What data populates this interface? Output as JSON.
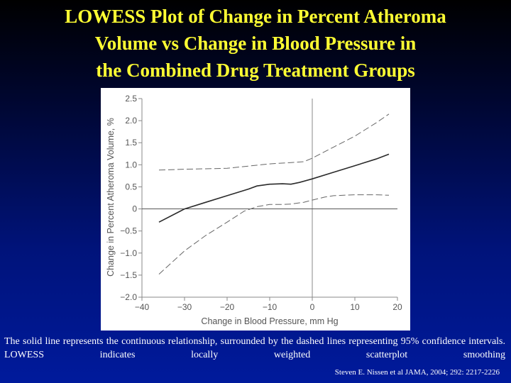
{
  "slide": {
    "title_lines": [
      "LOWESS Plot of Change in Percent Atheroma",
      "Volume vs Change in Blood Pressure in",
      "the Combined Drug Treatment Groups"
    ],
    "caption": "The solid line represents the continuous relationship, surrounded by the dashed lines representing 95% confidence intervals. LOWESS indicates locally weighted scatterplot smoothing",
    "citation": "Steven E. Nissen et al JAMA, 2004; 292: 2217-2226",
    "colors": {
      "title": "#ffff33",
      "background": "#00137a",
      "text": "#ffffff"
    }
  },
  "chart_data": {
    "type": "line",
    "title": "",
    "xlabel": "Change in Blood Pressure, mm Hg",
    "ylabel": "Change in Percent Atheroma Volume, %",
    "xlim": [
      -40,
      20
    ],
    "ylim": [
      -2.0,
      2.5
    ],
    "xticks": [
      -40,
      -30,
      -20,
      -10,
      0,
      10,
      20
    ],
    "xtick_labels": [
      "−40",
      "−30",
      "−20",
      "−10",
      "0",
      "10",
      "20"
    ],
    "yticks": [
      2.5,
      2.0,
      1.5,
      1.0,
      0.5,
      0,
      -0.5,
      -1.0,
      -1.5,
      -2.0
    ],
    "ytick_labels": [
      "2.5",
      "2.0",
      "1.5",
      "1.0",
      "0.5",
      "0",
      "−0.5",
      "−1.0",
      "−1.5",
      "−2.0"
    ],
    "grid": false,
    "reference_lines": {
      "x": 0,
      "y": 0
    },
    "series": [
      {
        "style": "solid",
        "x": [
          -36,
          -30,
          -25,
          -20,
          -15,
          -13,
          -10,
          -7,
          -5,
          -3,
          0,
          5,
          10,
          15,
          18
        ],
        "y": [
          -0.3,
          0.0,
          0.15,
          0.3,
          0.45,
          0.52,
          0.56,
          0.57,
          0.56,
          0.6,
          0.68,
          0.83,
          0.98,
          1.13,
          1.24
        ]
      },
      {
        "style": "dashed",
        "x": [
          -36,
          -30,
          -20,
          -15,
          -12,
          -10,
          -5,
          -2,
          0,
          5,
          10,
          15,
          18
        ],
        "y": [
          0.88,
          0.9,
          0.92,
          0.97,
          1.0,
          1.02,
          1.05,
          1.07,
          1.15,
          1.4,
          1.65,
          1.95,
          2.15
        ]
      },
      {
        "style": "dashed",
        "x": [
          -36,
          -30,
          -25,
          -20,
          -16,
          -13,
          -10,
          -7,
          -5,
          -2,
          0,
          3,
          5,
          10,
          15,
          18
        ],
        "y": [
          -1.48,
          -0.95,
          -0.6,
          -0.3,
          -0.05,
          0.05,
          0.1,
          0.1,
          0.11,
          0.15,
          0.2,
          0.27,
          0.3,
          0.32,
          0.32,
          0.31
        ]
      }
    ]
  }
}
